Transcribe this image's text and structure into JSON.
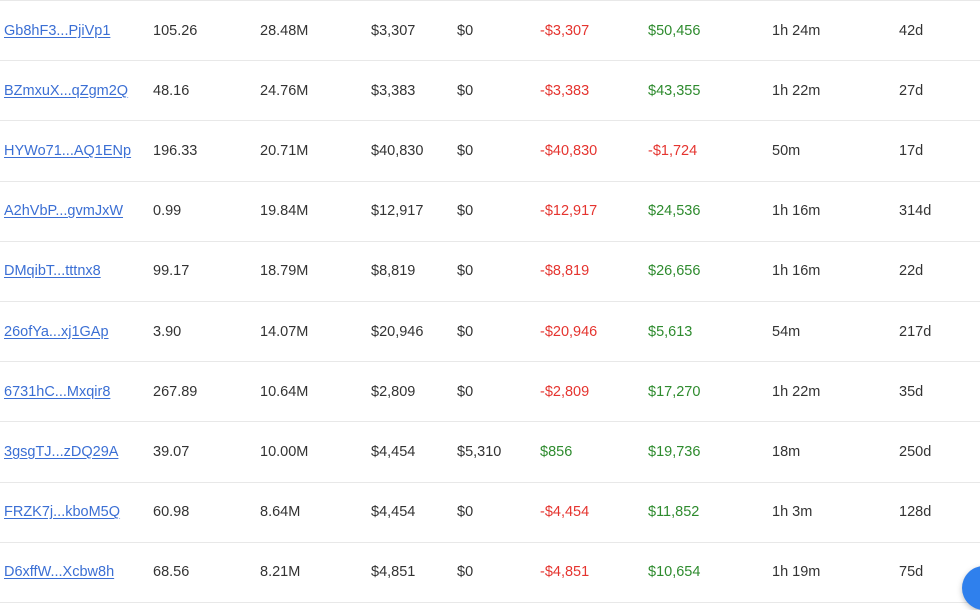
{
  "columns_order": [
    "address",
    "col2",
    "col3",
    "col4",
    "col5",
    "col6",
    "col7",
    "col8",
    "col9"
  ],
  "rows": [
    {
      "address": "Gb8hF3...PjiVp1",
      "col2": "105.26",
      "col3": "28.48M",
      "col4": "$3,307",
      "col5": "$0",
      "col6": "-$3,307",
      "col6_sign": "neg",
      "col7": "$50,456",
      "col7_sign": "pos",
      "col8": "1h 24m",
      "col9": "42d"
    },
    {
      "address": "BZmxuX...qZgm2Q",
      "col2": "48.16",
      "col3": "24.76M",
      "col4": "$3,383",
      "col5": "$0",
      "col6": "-$3,383",
      "col6_sign": "neg",
      "col7": "$43,355",
      "col7_sign": "pos",
      "col8": "1h 22m",
      "col9": "27d"
    },
    {
      "address": "HYWo71...AQ1ENp",
      "col2": "196.33",
      "col3": "20.71M",
      "col4": "$40,830",
      "col5": "$0",
      "col6": "-$40,830",
      "col6_sign": "neg",
      "col7": "-$1,724",
      "col7_sign": "neg",
      "col8": "50m",
      "col9": "17d"
    },
    {
      "address": "A2hVbP...gvmJxW",
      "col2": "0.99",
      "col3": "19.84M",
      "col4": "$12,917",
      "col5": "$0",
      "col6": "-$12,917",
      "col6_sign": "neg",
      "col7": "$24,536",
      "col7_sign": "pos",
      "col8": "1h 16m",
      "col9": "314d"
    },
    {
      "address": "DMqibT...tttnx8",
      "col2": "99.17",
      "col3": "18.79M",
      "col4": "$8,819",
      "col5": "$0",
      "col6": "-$8,819",
      "col6_sign": "neg",
      "col7": "$26,656",
      "col7_sign": "pos",
      "col8": "1h 16m",
      "col9": "22d"
    },
    {
      "address": "26ofYa...xj1GAp",
      "col2": "3.90",
      "col3": "14.07M",
      "col4": "$20,946",
      "col5": "$0",
      "col6": "-$20,946",
      "col6_sign": "neg",
      "col7": "$5,613",
      "col7_sign": "pos",
      "col8": "54m",
      "col9": "217d"
    },
    {
      "address": "6731hC...Mxqir8",
      "col2": "267.89",
      "col3": "10.64M",
      "col4": "$2,809",
      "col5": "$0",
      "col6": "-$2,809",
      "col6_sign": "neg",
      "col7": "$17,270",
      "col7_sign": "pos",
      "col8": "1h 22m",
      "col9": "35d"
    },
    {
      "address": "3gsgTJ...zDQ29A",
      "col2": "39.07",
      "col3": "10.00M",
      "col4": "$4,454",
      "col5": "$5,310",
      "col6": "$856",
      "col6_sign": "pos",
      "col7": "$19,736",
      "col7_sign": "pos",
      "col8": "18m",
      "col9": "250d"
    },
    {
      "address": "FRZK7j...kboM5Q",
      "col2": "60.98",
      "col3": "8.64M",
      "col4": "$4,454",
      "col5": "$0",
      "col6": "-$4,454",
      "col6_sign": "neg",
      "col7": "$11,852",
      "col7_sign": "pos",
      "col8": "1h 3m",
      "col9": "128d"
    },
    {
      "address": "D6xffW...Xcbw8h",
      "col2": "68.56",
      "col3": "8.21M",
      "col4": "$4,851",
      "col5": "$0",
      "col6": "-$4,851",
      "col6_sign": "neg",
      "col7": "$10,654",
      "col7_sign": "pos",
      "col8": "1h 19m",
      "col9": "75d"
    }
  ],
  "colors": {
    "link": "#3b6fd4",
    "negative": "#e5342f",
    "positive": "#2e8b2e",
    "text": "#333333",
    "divider": "#e8e8e8",
    "floating_button": "#2f80ed"
  },
  "floating_button": {
    "icon": "chat-bubble-icon"
  }
}
